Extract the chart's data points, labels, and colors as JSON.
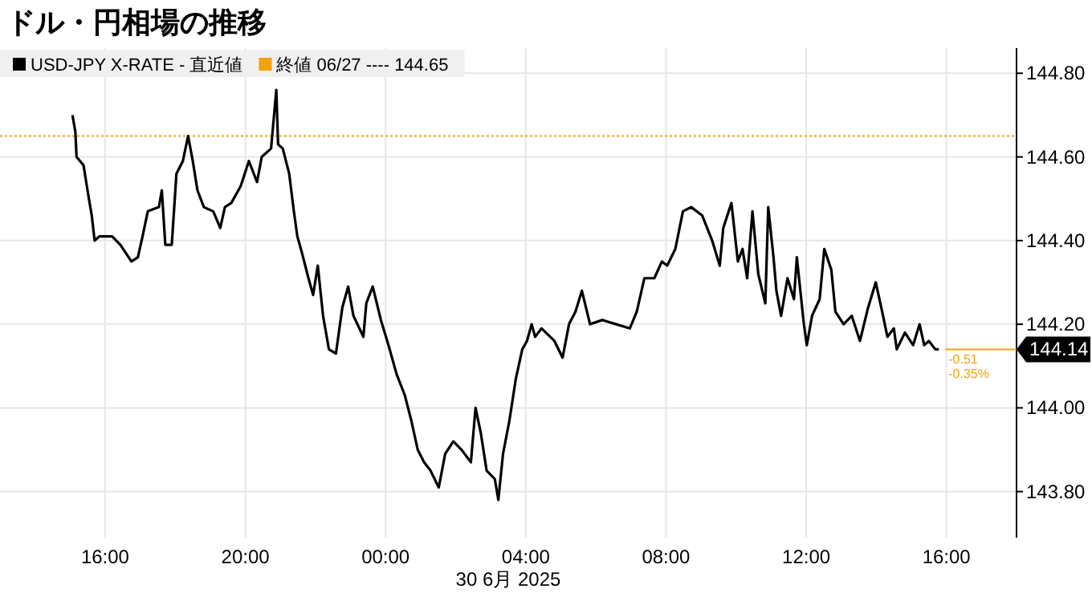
{
  "chart_data": {
    "type": "line",
    "title": "ドル・円相場の推移",
    "xlabel": "30 6月 2025",
    "legend": "top left",
    "grid": true,
    "xlim": [
      "2025-06-29T13:00",
      "2025-06-30T18:00"
    ],
    "ylim": [
      143.69,
      144.86
    ],
    "xticks": [
      {
        "value": "2025-06-29T16:00",
        "label": "16:00"
      },
      {
        "value": "2025-06-29T20:00",
        "label": "20:00"
      },
      {
        "value": "2025-06-30T00:00",
        "label": "00:00"
      },
      {
        "value": "2025-06-30T04:00",
        "label": "04:00"
      },
      {
        "value": "2025-06-30T08:00",
        "label": "08:00"
      },
      {
        "value": "2025-06-30T12:00",
        "label": "12:00"
      },
      {
        "value": "2025-06-30T16:00",
        "label": "16:00"
      }
    ],
    "yticks": [
      {
        "value": 143.8,
        "label": "143.80"
      },
      {
        "value": 144.0,
        "label": "144.00"
      },
      {
        "value": 144.2,
        "label": "144.20"
      },
      {
        "value": 144.4,
        "label": "144.40"
      },
      {
        "value": 144.6,
        "label": "144.60"
      },
      {
        "value": 144.8,
        "label": "144.80"
      }
    ],
    "ref_lines": [
      {
        "axis": "y",
        "value": 144.65,
        "label": "終値 06/27 ---- 144.65",
        "color": "#f0a30a",
        "line_style": "dotted"
      },
      {
        "axis": "y",
        "value": 144.14,
        "label": "144.14",
        "color": "#f0a30a",
        "line_style": "solid"
      }
    ],
    "annotations": [
      {
        "text": "-0.51",
        "x": "2025-06-30T15:47",
        "y": 144.14
      },
      {
        "text": "-0.35%",
        "x": "2025-06-30T15:47",
        "y": 144.14
      }
    ],
    "series": [
      {
        "name": "USD-JPY X-RATE - 直近値",
        "color": "#000000",
        "x": [
          "2025-06-29T15:04",
          "2025-06-29T15:09",
          "2025-06-29T15:11",
          "2025-06-29T15:23",
          "2025-06-29T15:31",
          "2025-06-29T15:37",
          "2025-06-29T15:42",
          "2025-06-29T15:50",
          "2025-06-29T16:12",
          "2025-06-29T16:26",
          "2025-06-29T16:45",
          "2025-06-29T16:56",
          "2025-06-29T17:04",
          "2025-06-29T17:13",
          "2025-06-29T17:32",
          "2025-06-29T17:37",
          "2025-06-29T17:43",
          "2025-06-29T17:54",
          "2025-06-29T18:02",
          "2025-06-29T18:13",
          "2025-06-29T18:22",
          "2025-06-29T18:30",
          "2025-06-29T18:38",
          "2025-06-29T18:49",
          "2025-06-29T19:05",
          "2025-06-29T19:17",
          "2025-06-29T19:25",
          "2025-06-29T19:36",
          "2025-06-29T19:52",
          "2025-06-29T20:06",
          "2025-06-29T20:20",
          "2025-06-29T20:28",
          "2025-06-29T20:44",
          "2025-06-29T20:53",
          "2025-06-29T20:56",
          "2025-06-29T21:04",
          "2025-06-29T21:15",
          "2025-06-29T21:23",
          "2025-06-29T21:29",
          "2025-06-29T21:37",
          "2025-06-29T21:48",
          "2025-06-29T21:56",
          "2025-06-29T22:04",
          "2025-06-29T22:13",
          "2025-06-29T22:23",
          "2025-06-29T22:35",
          "2025-06-29T22:46",
          "2025-06-29T22:56",
          "2025-06-29T23:05",
          "2025-06-29T23:22",
          "2025-06-29T23:27",
          "2025-06-29T23:38",
          "2025-06-29T23:52",
          "2025-06-30T00:05",
          "2025-06-30T00:19",
          "2025-06-30T00:33",
          "2025-06-30T00:44",
          "2025-06-30T00:55",
          "2025-06-30T01:06",
          "2025-06-30T01:17",
          "2025-06-30T01:31",
          "2025-06-30T01:42",
          "2025-06-30T01:56",
          "2025-06-30T02:10",
          "2025-06-30T02:26",
          "2025-06-30T02:34",
          "2025-06-30T02:43",
          "2025-06-30T02:53",
          "2025-06-30T03:07",
          "2025-06-30T03:13",
          "2025-06-30T03:21",
          "2025-06-30T03:32",
          "2025-06-30T03:43",
          "2025-06-30T03:54",
          "2025-06-30T04:02",
          "2025-06-30T04:10",
          "2025-06-30T04:16",
          "2025-06-30T04:27",
          "2025-06-30T04:49",
          "2025-06-30T05:03",
          "2025-06-30T05:14",
          "2025-06-30T05:25",
          "2025-06-30T05:36",
          "2025-06-30T05:50",
          "2025-06-30T06:11",
          "2025-06-30T06:58",
          "2025-06-30T07:10",
          "2025-06-30T07:23",
          "2025-06-30T07:40",
          "2025-06-30T07:53",
          "2025-06-30T08:02",
          "2025-06-30T08:16",
          "2025-06-30T08:29",
          "2025-06-30T08:43",
          "2025-06-30T09:02",
          "2025-06-30T09:19",
          "2025-06-30T09:32",
          "2025-06-30T09:38",
          "2025-06-30T09:52",
          "2025-06-30T10:03",
          "2025-06-30T10:11",
          "2025-06-30T10:19",
          "2025-06-30T10:28",
          "2025-06-30T10:38",
          "2025-06-30T10:50",
          "2025-06-30T10:55",
          "2025-06-30T11:04",
          "2025-06-30T11:09",
          "2025-06-30T11:17",
          "2025-06-30T11:28",
          "2025-06-30T11:39",
          "2025-06-30T11:44",
          "2025-06-30T11:56",
          "2025-06-30T12:01",
          "2025-06-30T12:10",
          "2025-06-30T12:23",
          "2025-06-30T12:31",
          "2025-06-30T12:43",
          "2025-06-30T12:50",
          "2025-06-30T13:04",
          "2025-06-30T13:18",
          "2025-06-30T13:32",
          "2025-06-30T13:46",
          "2025-06-30T13:59",
          "2025-06-30T14:10",
          "2025-06-30T14:19",
          "2025-06-30T14:30",
          "2025-06-30T14:35",
          "2025-06-30T14:49",
          "2025-06-30T15:03",
          "2025-06-30T15:14",
          "2025-06-30T15:22",
          "2025-06-30T15:30",
          "2025-06-30T15:41",
          "2025-06-30T15:47"
        ],
        "values": [
          144.7,
          144.66,
          144.6,
          144.58,
          144.51,
          144.46,
          144.4,
          144.41,
          144.41,
          144.39,
          144.35,
          144.36,
          144.41,
          144.47,
          144.48,
          144.52,
          144.39,
          144.39,
          144.56,
          144.59,
          144.65,
          144.59,
          144.52,
          144.48,
          144.47,
          144.43,
          144.48,
          144.49,
          144.53,
          144.59,
          144.54,
          144.6,
          144.62,
          144.76,
          144.63,
          144.62,
          144.56,
          144.47,
          144.41,
          144.37,
          144.31,
          144.27,
          144.34,
          144.22,
          144.14,
          144.13,
          144.24,
          144.29,
          144.22,
          144.17,
          144.25,
          144.29,
          144.21,
          144.15,
          144.08,
          144.03,
          143.97,
          143.9,
          143.87,
          143.85,
          143.81,
          143.89,
          143.92,
          143.9,
          143.87,
          144.0,
          143.94,
          143.85,
          143.83,
          143.78,
          143.89,
          143.97,
          144.07,
          144.14,
          144.16,
          144.2,
          144.17,
          144.19,
          144.16,
          144.12,
          144.2,
          144.23,
          144.28,
          144.2,
          144.21,
          144.19,
          144.23,
          144.31,
          144.31,
          144.35,
          144.34,
          144.38,
          144.47,
          144.48,
          144.46,
          144.4,
          144.34,
          144.43,
          144.49,
          144.35,
          144.38,
          144.31,
          144.47,
          144.32,
          144.25,
          144.48,
          144.36,
          144.28,
          144.22,
          144.31,
          144.26,
          144.36,
          144.2,
          144.15,
          144.22,
          144.26,
          144.38,
          144.33,
          144.23,
          144.2,
          144.22,
          144.16,
          144.24,
          144.3,
          144.23,
          144.17,
          144.19,
          144.14,
          144.18,
          144.15,
          144.2,
          144.15,
          144.16,
          144.14,
          144.14
        ]
      }
    ]
  }
}
